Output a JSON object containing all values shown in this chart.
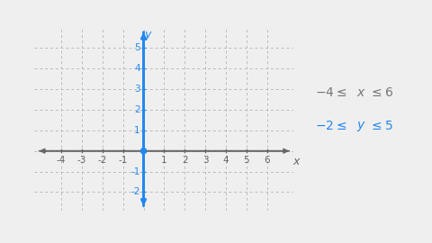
{
  "bg_color": "#efefef",
  "x_axis_color": "#666666",
  "y_axis_color": "#2288ee",
  "grid_color": "#bbbbbb",
  "tick_color_x": "#666666",
  "tick_color_y": "#2288ee",
  "x_min": -5.3,
  "x_max": 7.3,
  "y_min": -2.9,
  "y_max": 6.0,
  "x_ticks": [
    -4,
    -3,
    -2,
    -1,
    1,
    2,
    3,
    4,
    5,
    6
  ],
  "y_ticks": [
    -2,
    -1,
    1,
    2,
    3,
    4,
    5
  ],
  "x_label": "x",
  "y_label": "y",
  "ann_color1": "#777777",
  "ann_color2": "#2288ee",
  "origin_circle_color": "#2288ee",
  "figsize": [
    4.8,
    2.7
  ],
  "dpi": 100
}
